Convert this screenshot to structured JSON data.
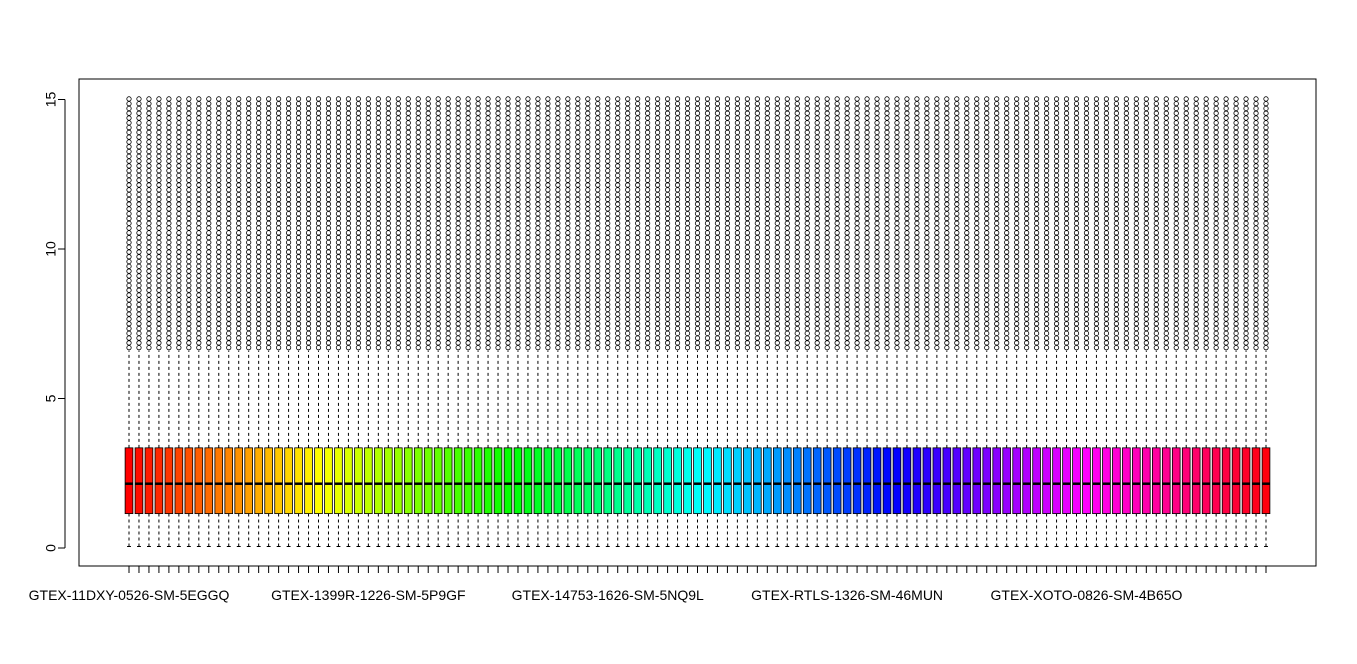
{
  "chart_data": {
    "type": "boxplot",
    "title": "",
    "xlabel": "",
    "ylabel": "",
    "ylim": [
      0,
      15.5
    ],
    "yticks": [
      0,
      5,
      10,
      15
    ],
    "grid": false,
    "n_boxes": 115,
    "colors": "rainbow",
    "visible_xlabels": [
      "GTEX-11DXY-0526-SM-5EGGQ",
      "GTEX-1399R-1226-SM-5P9GF",
      "GTEX-14753-1626-SM-5NQ9L",
      "GTEX-RTLS-1326-SM-46MUN",
      "GTEX-XOTO-0826-SM-4B65O"
    ],
    "box_stats": {
      "whisker_low": 0.05,
      "q1": 1.15,
      "median": 2.15,
      "q3": 3.35,
      "whisker_high": 6.6,
      "outlier_max": 15.15
    }
  }
}
